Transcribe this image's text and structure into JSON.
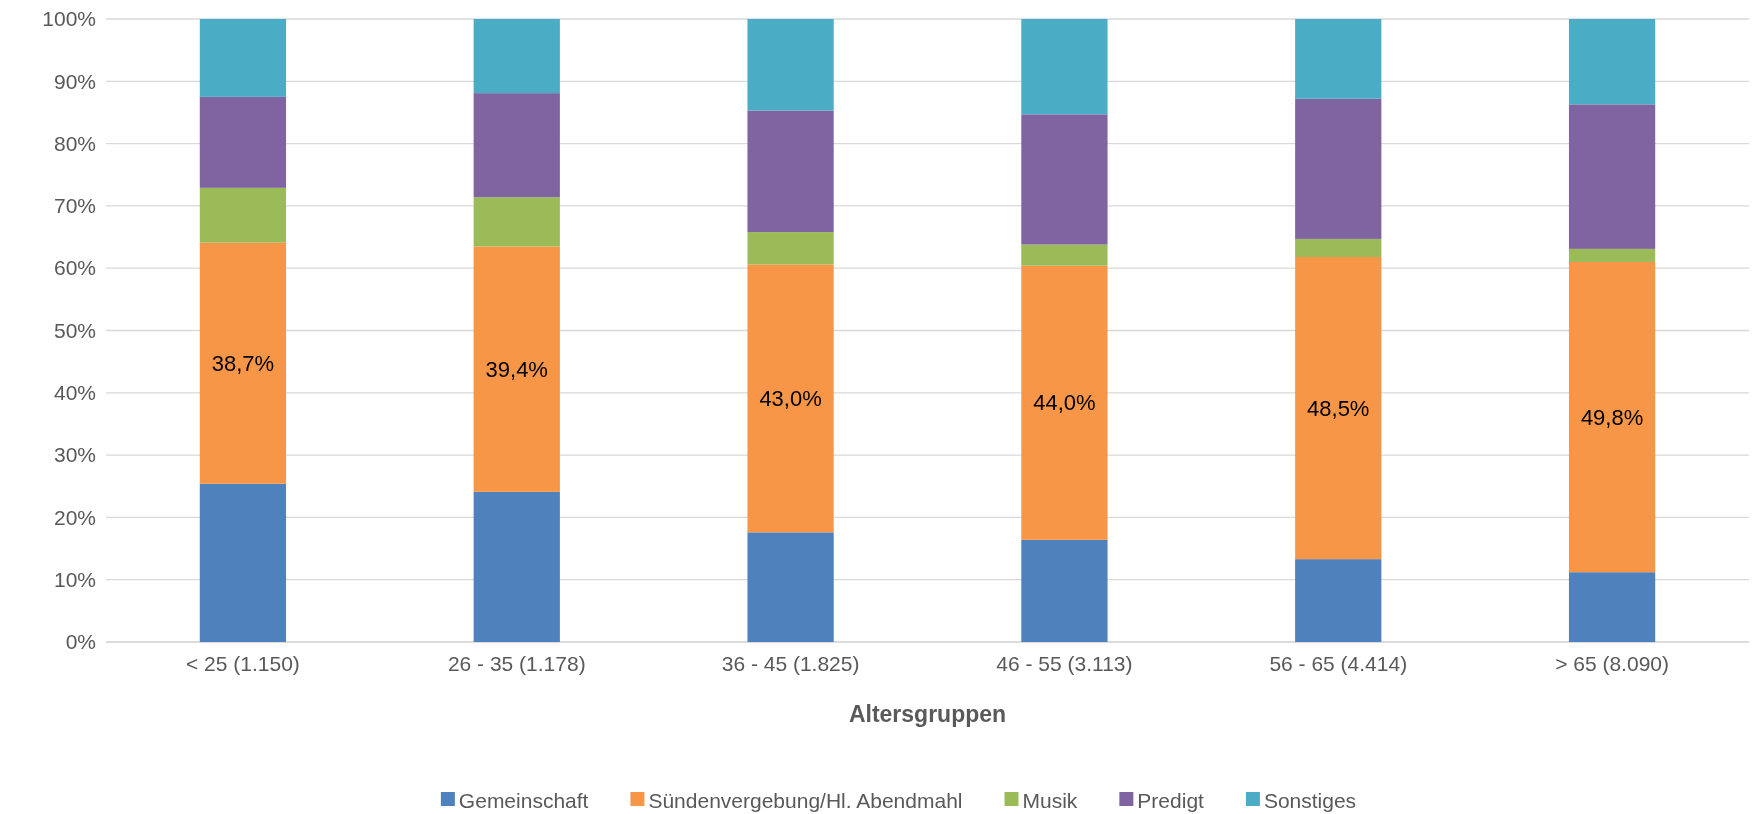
{
  "chart_data": {
    "type": "bar",
    "stacked": true,
    "xlabel": "Altersgruppen",
    "categories": [
      "< 25 (1.150)",
      "26 - 35 (1.178)",
      "36 - 45 (1.825)",
      "46 - 55 (3.113)",
      "56 - 65 (4.414)",
      "> 65 (8.090)"
    ],
    "series": [
      {
        "name": "Gemeinschaft",
        "color": "#4f81bd",
        "values": [
          25.4,
          24.1,
          17.6,
          16.4,
          13.3,
          11.2
        ]
      },
      {
        "name": "Sündenvergebung/Hl. Abendmahl",
        "color": "#f79646",
        "values": [
          38.7,
          39.4,
          43.0,
          44.0,
          48.5,
          49.8
        ],
        "value_labels": [
          "38,7%",
          "39,4%",
          "43,0%",
          "44,0%",
          "48,5%",
          "49,8%"
        ]
      },
      {
        "name": "Musik",
        "color": "#9bbb59",
        "values": [
          8.8,
          7.9,
          5.2,
          3.4,
          2.9,
          2.1
        ]
      },
      {
        "name": "Predigt",
        "color": "#8064a2",
        "values": [
          14.6,
          16.7,
          19.5,
          20.9,
          22.5,
          23.2
        ]
      },
      {
        "name": "Sonstiges",
        "color": "#4bacc6",
        "values": [
          12.5,
          11.9,
          14.7,
          15.3,
          12.8,
          13.7
        ]
      }
    ],
    "ylim": [
      0,
      100
    ],
    "yticks": [
      {
        "value": 0,
        "label": "0%"
      },
      {
        "value": 10,
        "label": "10%"
      },
      {
        "value": 20,
        "label": "20%"
      },
      {
        "value": 30,
        "label": "30%"
      },
      {
        "value": 40,
        "label": "40%"
      },
      {
        "value": 50,
        "label": "50%"
      },
      {
        "value": 60,
        "label": "60%"
      },
      {
        "value": 70,
        "label": "70%"
      },
      {
        "value": 80,
        "label": "80%"
      },
      {
        "value": 90,
        "label": "90%"
      },
      {
        "value": 100,
        "label": "100%"
      }
    ],
    "grid": "y",
    "legend": "bottom"
  }
}
